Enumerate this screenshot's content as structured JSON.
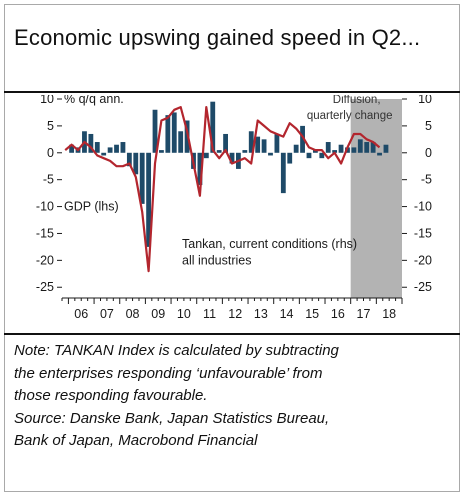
{
  "title": "Economic upswing gained speed in Q2...",
  "note_lines": [
    "Note: TANKAN Index is calculated by subtracting",
    "the enterprises responding ‘unfavourable’ from",
    "those responding favourable.",
    "Source: Danske Bank, Japan Statistics Bureau,",
    "Bank of Japan, Macrobond Financial"
  ],
  "colors": {
    "gdp_bar": "#1e4a68",
    "tankan_line": "#b3262e",
    "shade": "#b3b3b3"
  },
  "chart_data": {
    "type": "bar",
    "ylabel_left": "% q/q ann.",
    "ylim": [
      -27,
      10
    ],
    "yticks": [
      10,
      5,
      0,
      -5,
      -10,
      -15,
      -20,
      -25
    ],
    "yticks_left_labels": [
      "10",
      "5",
      "0",
      "-5",
      "-10",
      "-15",
      "-20",
      "-25"
    ],
    "yticks_right_labels": [
      "10",
      "5",
      "0",
      "-5",
      "-10",
      "-15",
      "-20",
      "-25"
    ],
    "xticks": [
      "06",
      "07",
      "08",
      "09",
      "10",
      "11",
      "12",
      "13",
      "14",
      "15",
      "16",
      "17",
      "18"
    ],
    "x_start": "2005Q4",
    "x_end": "2018Q4",
    "shaded_region": {
      "from": "2017Q1",
      "to": "2018Q4",
      "label": [
        "Diffusion,",
        "quarterly change"
      ]
    },
    "series": [
      {
        "name": "GDP (lhs)",
        "type": "bar",
        "x": [
          "2006Q1",
          "2006Q2",
          "2006Q3",
          "2006Q4",
          "2007Q1",
          "2007Q2",
          "2007Q3",
          "2007Q4",
          "2008Q1",
          "2008Q2",
          "2008Q3",
          "2008Q4",
          "2009Q1",
          "2009Q2",
          "2009Q3",
          "2009Q4",
          "2010Q1",
          "2010Q2",
          "2010Q3",
          "2010Q4",
          "2011Q1",
          "2011Q2",
          "2011Q3",
          "2011Q4",
          "2012Q1",
          "2012Q2",
          "2012Q3",
          "2012Q4",
          "2013Q1",
          "2013Q2",
          "2013Q3",
          "2013Q4",
          "2014Q1",
          "2014Q2",
          "2014Q3",
          "2014Q4",
          "2015Q1",
          "2015Q2",
          "2015Q3",
          "2015Q4",
          "2016Q1",
          "2016Q2",
          "2016Q3",
          "2016Q4",
          "2017Q1",
          "2017Q2",
          "2017Q3",
          "2017Q4",
          "2018Q1",
          "2018Q2"
        ],
        "values": [
          1.5,
          1.0,
          4.0,
          3.5,
          2.0,
          -0.5,
          1.0,
          1.5,
          2.0,
          -2.5,
          -4.0,
          -9.5,
          -17.5,
          8.0,
          0.5,
          7.0,
          7.5,
          4.0,
          6.0,
          -3.0,
          -6.0,
          -1.0,
          9.5,
          0.5,
          3.5,
          -2.0,
          -3.0,
          0.5,
          4.0,
          3.0,
          2.5,
          -0.5,
          3.5,
          -7.5,
          -2.0,
          1.5,
          5.0,
          -1.0,
          0.5,
          -1.0,
          2.0,
          0.5,
          1.5,
          1.0,
          1.0,
          2.5,
          2.0,
          2.0,
          -0.5,
          1.5
        ]
      },
      {
        "name": "Tankan, current conditions (rhs) all industries",
        "type": "line",
        "x": [
          "2005Q4",
          "2006Q1",
          "2006Q2",
          "2006Q3",
          "2006Q4",
          "2007Q1",
          "2007Q2",
          "2007Q3",
          "2007Q4",
          "2008Q1",
          "2008Q2",
          "2008Q3",
          "2008Q4",
          "2009Q1",
          "2009Q2",
          "2009Q3",
          "2009Q4",
          "2010Q1",
          "2010Q2",
          "2010Q3",
          "2010Q4",
          "2011Q1",
          "2011Q2",
          "2011Q3",
          "2011Q4",
          "2012Q1",
          "2012Q2",
          "2012Q3",
          "2012Q4",
          "2013Q1",
          "2013Q2",
          "2013Q3",
          "2013Q4",
          "2014Q1",
          "2014Q2",
          "2014Q3",
          "2014Q4",
          "2015Q1",
          "2015Q2",
          "2015Q3",
          "2015Q4",
          "2016Q1",
          "2016Q2",
          "2016Q3",
          "2016Q4",
          "2017Q1",
          "2017Q2",
          "2017Q3",
          "2017Q4",
          "2018Q1"
        ],
        "values": [
          0.5,
          1.5,
          0.5,
          2.0,
          1.0,
          -0.5,
          -1.0,
          -1.5,
          -2.5,
          -2.5,
          -2.0,
          -4.5,
          -11.0,
          -22.0,
          -2.0,
          6.0,
          6.5,
          8.0,
          8.5,
          4.0,
          -2.0,
          -8.0,
          8.5,
          0.5,
          -1.0,
          0.5,
          -2.0,
          -1.5,
          -1.0,
          -2.0,
          6.0,
          5.0,
          4.0,
          3.5,
          3.0,
          5.5,
          4.5,
          3.0,
          1.0,
          0.5,
          0.5,
          -1.0,
          0.0,
          -2.0,
          1.0,
          3.5,
          3.5,
          2.5,
          2.0,
          1.0
        ]
      }
    ],
    "annotations": [
      {
        "text": "GDP (lhs)",
        "color": "#1e4a68"
      },
      {
        "text": "Tankan, current conditions (rhs)",
        "color": "#b3262e"
      },
      {
        "text": "all industries",
        "color": "#b3262e"
      }
    ]
  }
}
